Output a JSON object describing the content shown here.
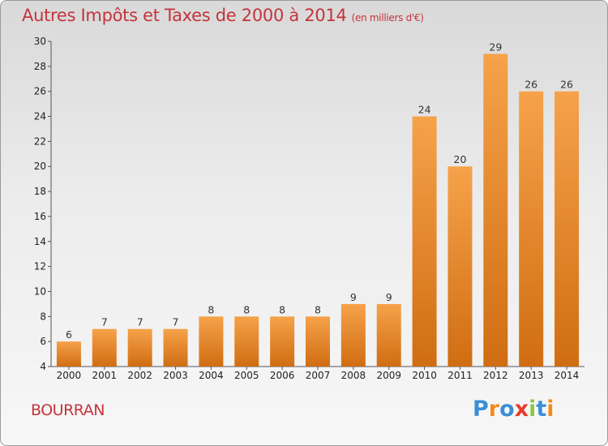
{
  "header": {
    "title": "Autres Impôts et Taxes de 2000 à 2014",
    "subtitle": "(en milliers d'€)"
  },
  "footer": {
    "commune": "BOURRAN",
    "brand": "Proxiti",
    "brand_letters": [
      "P",
      "r",
      "o",
      "x",
      "i",
      "t",
      "i"
    ],
    "brand_colors": [
      "#3a8fd8",
      "#f18c1e",
      "#3a8fd8",
      "#e63c2f",
      "#8dc63f",
      "#3a8fd8",
      "#f18c1e"
    ]
  },
  "colors": {
    "bar_top": "#f6a24a",
    "bar_bottom": "#d06d12",
    "title": "#c4343c"
  },
  "chart_data": {
    "type": "bar",
    "title": "Autres Impôts et Taxes de 2000 à 2014",
    "categories": [
      "2000",
      "2001",
      "2002",
      "2003",
      "2004",
      "2005",
      "2006",
      "2007",
      "2008",
      "2009",
      "2010",
      "2011",
      "2012",
      "2013",
      "2014"
    ],
    "values": [
      6,
      7,
      7,
      7,
      8,
      8,
      8,
      8,
      9,
      9,
      24,
      20,
      29,
      26,
      26
    ],
    "ylim": [
      4,
      30
    ],
    "yticks": [
      4,
      6,
      8,
      10,
      12,
      14,
      16,
      18,
      20,
      22,
      24,
      26,
      28,
      30
    ],
    "grid": false,
    "legend": "none"
  }
}
